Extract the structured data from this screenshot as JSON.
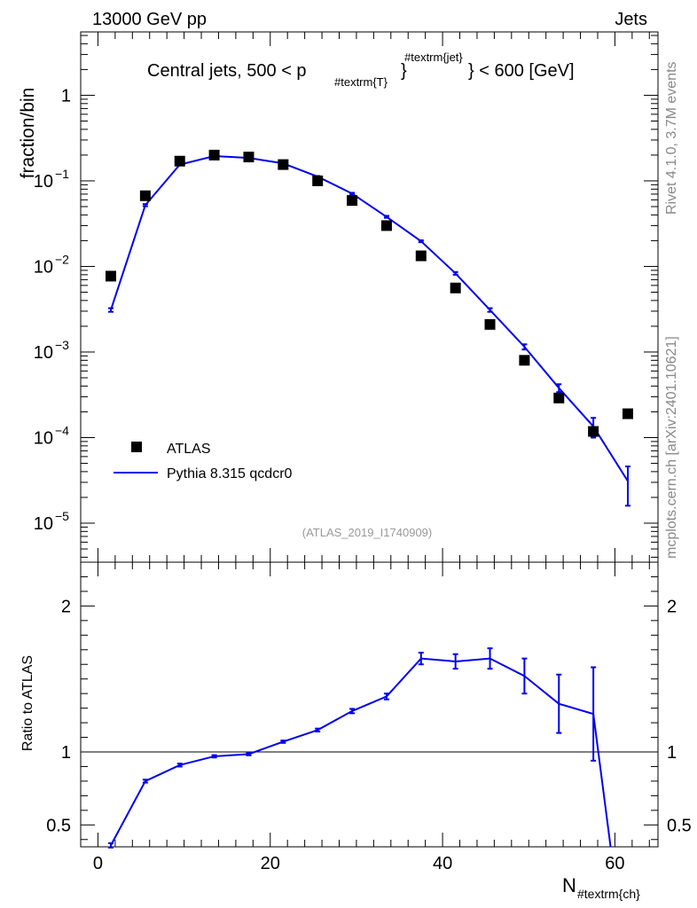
{
  "header": {
    "left_label": "13000 GeV pp",
    "right_label": "Jets"
  },
  "side_labels": {
    "rivet": "Rivet 4.1.0,  3.7M events",
    "mcplots": "mcplots.cern.ch [arXiv:2401.10621]"
  },
  "chart_data": [
    {
      "type": "scatter",
      "panel": "main",
      "title_parts": {
        "prefix": "Central jets, 500 < p",
        "subscript": "#textrm{T}",
        "superscript": "#textrm{jet}",
        "suffix": "} < 600 [GeV]"
      },
      "ylabel": "fraction/bin",
      "yscale": "log",
      "ylim": [
        3.5e-06,
        5.5
      ],
      "xlim": [
        -2,
        65
      ],
      "y_tick_labels": [
        "10^-5",
        "10^-4",
        "10^-3",
        "10^-2",
        "10^-1",
        "1"
      ],
      "analysis_label": "(ATLAS_2019_I1740909)",
      "legend_position": "bottom-left",
      "series": [
        {
          "name": "ATLAS",
          "style": "markers",
          "color": "#000000",
          "x": [
            1.5,
            5.5,
            9.5,
            13.5,
            17.5,
            21.5,
            25.5,
            29.5,
            33.5,
            37.5,
            41.5,
            45.5,
            49.5,
            53.5,
            57.5,
            61.5
          ],
          "y": [
            0.0077,
            0.067,
            0.17,
            0.2,
            0.19,
            0.155,
            0.1,
            0.059,
            0.03,
            0.0133,
            0.0056,
            0.0021,
            0.0008,
            0.00029,
            0.000118,
            0.00019
          ]
        },
        {
          "name": "Pythia 8.315 qcdcr0",
          "style": "line",
          "color": "#0000ee",
          "x": [
            1.5,
            5.5,
            9.5,
            13.5,
            17.5,
            21.5,
            25.5,
            29.5,
            33.5,
            37.5,
            41.5,
            45.5,
            49.5,
            53.5,
            57.5,
            61.5
          ],
          "y": [
            0.0031,
            0.052,
            0.155,
            0.195,
            0.185,
            0.16,
            0.112,
            0.071,
            0.038,
            0.0197,
            0.0083,
            0.0031,
            0.00115,
            0.00038,
            0.000135,
            3.1e-05
          ],
          "err": [
            0.00015,
            0.0015,
            0.003,
            0.003,
            0.003,
            0.003,
            0.002,
            0.0015,
            0.001,
            0.0005,
            0.0003,
            0.00015,
            8e-05,
            4e-05,
            3.5e-05,
            1.5e-05
          ]
        }
      ]
    },
    {
      "type": "line",
      "panel": "ratio",
      "ylabel": "Ratio to ATLAS",
      "xlabel_main": "N",
      "xlabel_sub": "#textrm{ch}",
      "ylim": [
        0.35,
        2.3
      ],
      "xlim": [
        -2,
        65
      ],
      "reference_line": 1,
      "x_tick_labels": [
        "0",
        "20",
        "40",
        "60"
      ],
      "y_tick_labels": [
        "0.5",
        "1",
        "2"
      ],
      "series": [
        {
          "name": "Pythia 8.315 qcdcr0",
          "color": "#0000ee",
          "x": [
            1.5,
            5.5,
            9.5,
            13.5,
            17.5,
            21.5,
            25.5,
            29.5,
            33.5,
            37.5,
            41.5,
            45.5,
            49.5,
            53.5,
            57.5,
            59.5
          ],
          "y": [
            0.36,
            0.8,
            0.91,
            0.97,
            0.985,
            1.07,
            1.15,
            1.28,
            1.38,
            1.64,
            1.62,
            1.64,
            1.52,
            1.33,
            1.26,
            0.35
          ],
          "err": [
            0.015,
            0.01,
            0.01,
            0.008,
            0.008,
            0.008,
            0.01,
            0.015,
            0.02,
            0.04,
            0.05,
            0.07,
            0.12,
            0.2,
            0.32,
            0
          ]
        }
      ]
    }
  ]
}
